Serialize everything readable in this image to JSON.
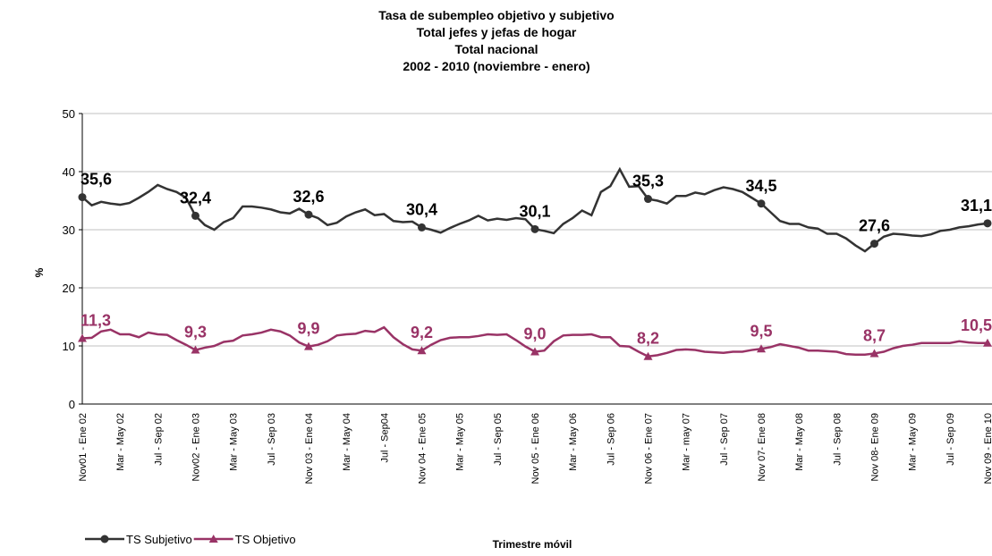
{
  "chart_data": {
    "type": "line",
    "title": [
      "Tasa de subempleo objetivo y subjetivo",
      "Total jefes y jefas de hogar",
      "Total nacional",
      "2002 - 2010 (noviembre - enero)"
    ],
    "xlabel": "Trimestre móvil",
    "ylabel": "%",
    "categories": [
      "Nov01 - Ene 02",
      null,
      null,
      null,
      "Mar - May 02",
      null,
      null,
      null,
      "Jul - Sep 02",
      null,
      null,
      null,
      "Nov02 - Ene 03",
      null,
      null,
      null,
      "Mar - May 03",
      null,
      null,
      null,
      "Jul - Sep 03",
      null,
      null,
      null,
      "Nov 03 - Ene 04",
      null,
      null,
      null,
      "Mar - May 04",
      null,
      null,
      null,
      "Jul - Sep04",
      null,
      null,
      null,
      "Nov 04 - Ene 05",
      null,
      null,
      null,
      "Mar - May 05",
      null,
      null,
      null,
      "Jul - Sep 05",
      null,
      null,
      null,
      "Nov 05 - Ene 06",
      null,
      null,
      null,
      "Mar - May 06",
      null,
      null,
      null,
      "Jul - Sep 06",
      null,
      null,
      null,
      "Nov 06 - Ene 07",
      null,
      null,
      null,
      "Mar - may 07",
      null,
      null,
      null,
      "Jul - Sep 07",
      null,
      null,
      null,
      "Nov 07- Ene 08",
      null,
      null,
      null,
      "Mar - May 08",
      null,
      null,
      null,
      "Jul - Sep 08",
      null,
      null,
      null,
      "Nov 08- Ene 09",
      null,
      null,
      null,
      "Mar - May 09",
      null,
      null,
      null,
      "Jul - Sep 09",
      null,
      null,
      null,
      "Nov 09 - Ene 10"
    ],
    "series": [
      {
        "name": "TS Subjetivo",
        "color": "#333333",
        "marker": "circle",
        "values": [
          35.6,
          34.2,
          34.8,
          34.5,
          34.3,
          34.6,
          35.5,
          36.5,
          37.7,
          37.0,
          36.5,
          35.5,
          32.4,
          30.8,
          30.0,
          31.3,
          32.0,
          34.0,
          34.0,
          33.8,
          33.5,
          33.0,
          32.8,
          33.6,
          32.6,
          32.0,
          30.8,
          31.2,
          32.3,
          33.0,
          33.5,
          32.5,
          32.7,
          31.5,
          31.3,
          31.4,
          30.4,
          30.0,
          29.5,
          30.3,
          31.0,
          31.6,
          32.4,
          31.6,
          31.9,
          31.7,
          32.0,
          31.8,
          30.1,
          29.8,
          29.4,
          31.0,
          32.0,
          33.3,
          32.5,
          36.5,
          37.5,
          40.4,
          37.4,
          37.5,
          35.3,
          35.0,
          34.5,
          35.8,
          35.8,
          36.4,
          36.1,
          36.8,
          37.3,
          37.0,
          36.5,
          35.5,
          34.5,
          33.0,
          31.5,
          31.0,
          31.0,
          30.4,
          30.2,
          29.3,
          29.3,
          28.5,
          27.3,
          26.3,
          27.6,
          28.8,
          29.3,
          29.2,
          29.0,
          28.9,
          29.2,
          29.8,
          30.0,
          30.4,
          30.6,
          30.9,
          31.1
        ],
        "value_labels": [
          "35,6",
          null,
          null,
          null,
          null,
          null,
          null,
          null,
          null,
          null,
          null,
          null,
          "32,4",
          null,
          null,
          null,
          null,
          null,
          null,
          null,
          null,
          null,
          null,
          null,
          "32,6",
          null,
          null,
          null,
          null,
          null,
          null,
          null,
          null,
          null,
          null,
          null,
          "30,4",
          null,
          null,
          null,
          null,
          null,
          null,
          null,
          null,
          null,
          null,
          null,
          "30,1",
          null,
          null,
          null,
          null,
          null,
          null,
          null,
          null,
          null,
          null,
          null,
          "35,3",
          null,
          null,
          null,
          null,
          null,
          null,
          null,
          null,
          null,
          null,
          null,
          "34,5",
          null,
          null,
          null,
          null,
          null,
          null,
          null,
          null,
          null,
          null,
          null,
          "27,6",
          null,
          null,
          null,
          null,
          null,
          null,
          null,
          null,
          null,
          null,
          null,
          "31,1"
        ]
      },
      {
        "name": "TS Objetivo",
        "color": "#993366",
        "marker": "triangle",
        "values": [
          11.3,
          11.4,
          12.5,
          12.8,
          12.0,
          12.0,
          11.5,
          12.3,
          12.0,
          11.9,
          11.0,
          10.2,
          9.3,
          9.7,
          10.0,
          10.7,
          10.9,
          11.8,
          12.0,
          12.3,
          12.8,
          12.5,
          11.8,
          10.6,
          9.9,
          10.2,
          10.8,
          11.8,
          12.0,
          12.1,
          12.6,
          12.4,
          13.2,
          11.5,
          10.3,
          9.4,
          9.2,
          10.2,
          11.0,
          11.4,
          11.5,
          11.5,
          11.7,
          12.0,
          11.9,
          12.0,
          11.0,
          9.9,
          9.0,
          9.2,
          10.8,
          11.8,
          11.9,
          11.9,
          12.0,
          11.5,
          11.5,
          10.0,
          9.9,
          9.0,
          8.2,
          8.4,
          8.8,
          9.3,
          9.4,
          9.3,
          9.0,
          8.9,
          8.8,
          9.0,
          9.0,
          9.3,
          9.5,
          9.8,
          10.3,
          10.0,
          9.7,
          9.2,
          9.2,
          9.1,
          9.0,
          8.6,
          8.5,
          8.5,
          8.7,
          9.0,
          9.6,
          10.0,
          10.2,
          10.5,
          10.5,
          10.5,
          10.5,
          10.8,
          10.6,
          10.5,
          10.5
        ],
        "value_labels": [
          "11,3",
          null,
          null,
          null,
          null,
          null,
          null,
          null,
          null,
          null,
          null,
          null,
          "9,3",
          null,
          null,
          null,
          null,
          null,
          null,
          null,
          null,
          null,
          null,
          null,
          "9,9",
          null,
          null,
          null,
          null,
          null,
          null,
          null,
          null,
          null,
          null,
          null,
          "9,2",
          null,
          null,
          null,
          null,
          null,
          null,
          null,
          null,
          null,
          null,
          null,
          "9,0",
          null,
          null,
          null,
          null,
          null,
          null,
          null,
          null,
          null,
          null,
          null,
          "8,2",
          null,
          null,
          null,
          null,
          null,
          null,
          null,
          null,
          null,
          null,
          null,
          "9,5",
          null,
          null,
          null,
          null,
          null,
          null,
          null,
          null,
          null,
          null,
          null,
          "8,7",
          null,
          null,
          null,
          null,
          null,
          null,
          null,
          null,
          null,
          null,
          null,
          "10,5"
        ]
      }
    ],
    "ylim": [
      0,
      50
    ],
    "yticks": [
      0,
      10,
      20,
      30,
      40,
      50
    ],
    "grid": true,
    "legend": "bottom-left"
  }
}
